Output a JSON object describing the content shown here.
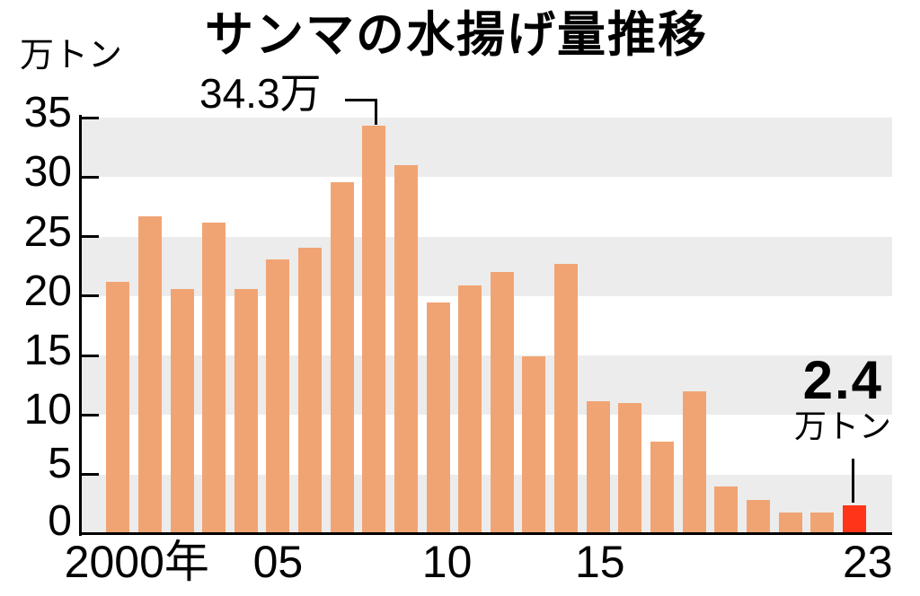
{
  "title": "サンマの水揚げ量推移",
  "y_axis": {
    "unit_label": "万トン",
    "tick_labels": [
      "0",
      "5",
      "10",
      "15",
      "20",
      "25",
      "30",
      "35"
    ]
  },
  "x_axis": {
    "tick_labels": [
      "2000年",
      "05",
      "10",
      "15",
      "23"
    ]
  },
  "annotations": {
    "peak": "34.3万",
    "latest_value": "2.4",
    "latest_unit": "万トン"
  },
  "colors": {
    "bar": "#F1A473",
    "highlight": "#FF3418",
    "band": "#ECECEC",
    "axis": "#000000"
  },
  "chart_data": {
    "type": "bar",
    "title": "サンマの水揚げ量推移",
    "xlabel": "年",
    "ylabel": "万トン",
    "ylim": [
      0,
      35
    ],
    "yticks": [
      0,
      5,
      10,
      15,
      20,
      25,
      30,
      35
    ],
    "grid": "alternating horizontal gray bands every 5 units",
    "legend": null,
    "x": [
      2000,
      2001,
      2002,
      2003,
      2004,
      2005,
      2006,
      2007,
      2008,
      2009,
      2010,
      2011,
      2012,
      2013,
      2014,
      2015,
      2016,
      2017,
      2018,
      2019,
      2020,
      2021,
      2022,
      2023
    ],
    "values": [
      21.2,
      26.7,
      20.6,
      26.2,
      20.6,
      23.1,
      24.1,
      29.6,
      34.3,
      31.0,
      19.5,
      20.9,
      22.0,
      14.9,
      22.7,
      11.2,
      11.0,
      7.8,
      12.0,
      4.0,
      2.9,
      1.8,
      1.8,
      2.4
    ],
    "xtick_labels": [
      {
        "year": 2000,
        "label": "2000年"
      },
      {
        "year": 2005,
        "label": "05"
      },
      {
        "year": 2010,
        "label": "10"
      },
      {
        "year": 2015,
        "label": "15"
      },
      {
        "year": 2023,
        "label": "23"
      }
    ],
    "highlight_year": 2023,
    "annotations": [
      {
        "target_year": 2008,
        "text": "34.3万",
        "style": "bracket connector to bar top"
      },
      {
        "target_year": 2023,
        "text": "2.4",
        "unit": "万トン",
        "style": "bold value with leader line to bar top"
      }
    ]
  }
}
